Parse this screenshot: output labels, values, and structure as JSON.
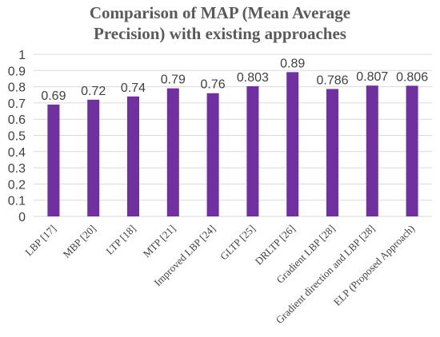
{
  "chart_data": {
    "type": "bar",
    "title_lines": [
      "Comparison of MAP (Mean Average",
      "Precision) with existing approaches"
    ],
    "categories": [
      "LBP [17]",
      "MBP [20]",
      "LTP [18]",
      "MTP [21]",
      "Improved LBP [24]",
      "GLTP [25]",
      "DRLTP [26]",
      "Gradient LBP [28]",
      "Gradient direction and LBP [28]",
      "ELP (Proposed Approach)"
    ],
    "values": [
      0.69,
      0.72,
      0.74,
      0.79,
      0.76,
      0.803,
      0.89,
      0.786,
      0.807,
      0.806
    ],
    "value_labels": [
      "0.69",
      "0.72",
      "0.74",
      "0.79",
      "0.76",
      "0.803",
      "0.89",
      "0.786",
      "0.807",
      "0.806"
    ],
    "y_ticks": [
      0,
      0.1,
      0.2,
      0.3,
      0.4,
      0.5,
      0.6,
      0.7,
      0.8,
      0.9,
      1
    ],
    "y_tick_labels": [
      "0",
      "0.1",
      "0.2",
      "0.3",
      "0.4",
      "0.5",
      "0.6",
      "0.7",
      "0.8",
      "0.9",
      "1"
    ],
    "ylim": [
      0,
      1
    ],
    "xlabel": "",
    "ylabel": "",
    "grid": true,
    "legend": "none",
    "bar_color": "#7030a0",
    "grid_color": "#d9d9d9"
  }
}
